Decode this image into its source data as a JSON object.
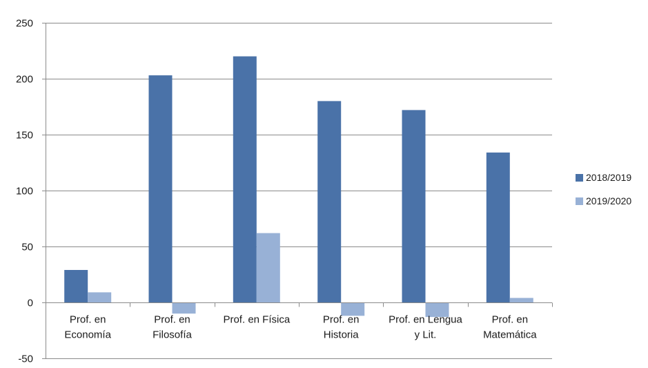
{
  "chart_data": {
    "type": "bar",
    "title": "",
    "xlabel": "",
    "ylabel": "",
    "ylim": [
      -50,
      250
    ],
    "yticks": [
      -50,
      0,
      50,
      100,
      150,
      200,
      250
    ],
    "grid": true,
    "legend_position": "right",
    "categories": [
      [
        "Prof. en",
        "Economía"
      ],
      [
        "Prof. en",
        "Filosofía"
      ],
      [
        "Prof. en Física"
      ],
      [
        "Prof. en",
        "Historia"
      ],
      [
        "Prof. en Lengua",
        "y Lit."
      ],
      [
        "Prof. en",
        "Matemática"
      ]
    ],
    "series": [
      {
        "name": "2018/2019",
        "color": "#4a72a8",
        "values": [
          29,
          203,
          220,
          180,
          172,
          134
        ]
      },
      {
        "name": "2019/2020",
        "color": "#98b1d6",
        "values": [
          9,
          -10,
          62,
          -12,
          -13,
          4
        ]
      }
    ]
  }
}
